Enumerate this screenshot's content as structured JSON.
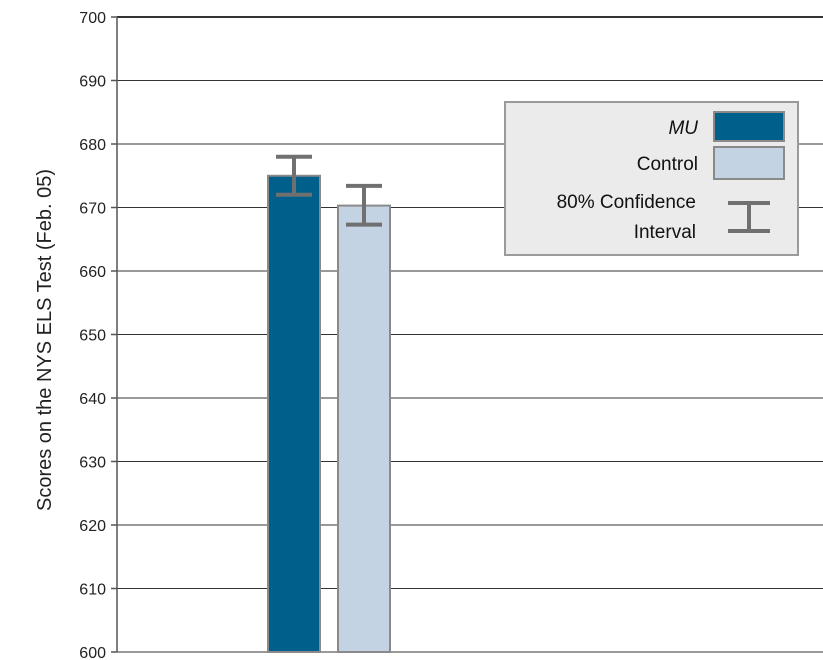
{
  "chart_data": {
    "type": "bar",
    "title": "",
    "xlabel": "",
    "ylabel": "Scores on the NYS ELS Test (Feb. 05)",
    "ylim": [
      600,
      700
    ],
    "yticks": [
      600,
      610,
      620,
      630,
      640,
      650,
      660,
      670,
      680,
      690,
      700
    ],
    "grid": true,
    "legend_position": "top-right",
    "series": [
      {
        "name": "MU",
        "value": 675,
        "ci_low": 672,
        "ci_high": 678,
        "color": "#005f8b"
      },
      {
        "name": "Control",
        "value": 670.3,
        "ci_low": 667.3,
        "ci_high": 673.4,
        "color": "#c3d3e4"
      }
    ],
    "legend": {
      "items": [
        {
          "label": "MU",
          "italic": true
        },
        {
          "label": "Control",
          "italic": false
        }
      ],
      "ci_label_line1": "80% Confidence",
      "ci_label_line2": "Interval"
    },
    "colors": {
      "grid": "#333333",
      "axis": "#555555",
      "error_bar": "#707070",
      "legend_bg": "#ebebeb",
      "legend_border": "#9a9a9a"
    }
  }
}
